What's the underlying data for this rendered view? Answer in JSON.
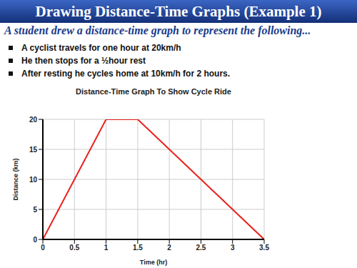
{
  "heading": "Drawing Distance-Time Graphs (Example 1)",
  "intro": "A student drew a distance-time graph to represent the following...",
  "bullets": [
    "A cyclist travels for one hour at 20km/h",
    "He then stops for a ½hour rest",
    "After resting he cycles home at 10km/h for 2 hours."
  ],
  "chart_data": {
    "type": "line",
    "title": "Distance-Time Graph To Show Cycle Ride",
    "x_label": "Time (hr)",
    "y_label": "Distance (km)",
    "x": [
      0,
      1,
      1.5,
      3.5
    ],
    "values": [
      0,
      20,
      20,
      0
    ],
    "color": "#e8231e",
    "xlim": [
      0,
      3.5
    ],
    "xticks": [
      0,
      0.5,
      1,
      1.5,
      2,
      2.5,
      3,
      3.5
    ],
    "ylim": [
      0,
      20
    ],
    "yticks": [
      0,
      5,
      10,
      15,
      20
    ],
    "grid": true
  }
}
